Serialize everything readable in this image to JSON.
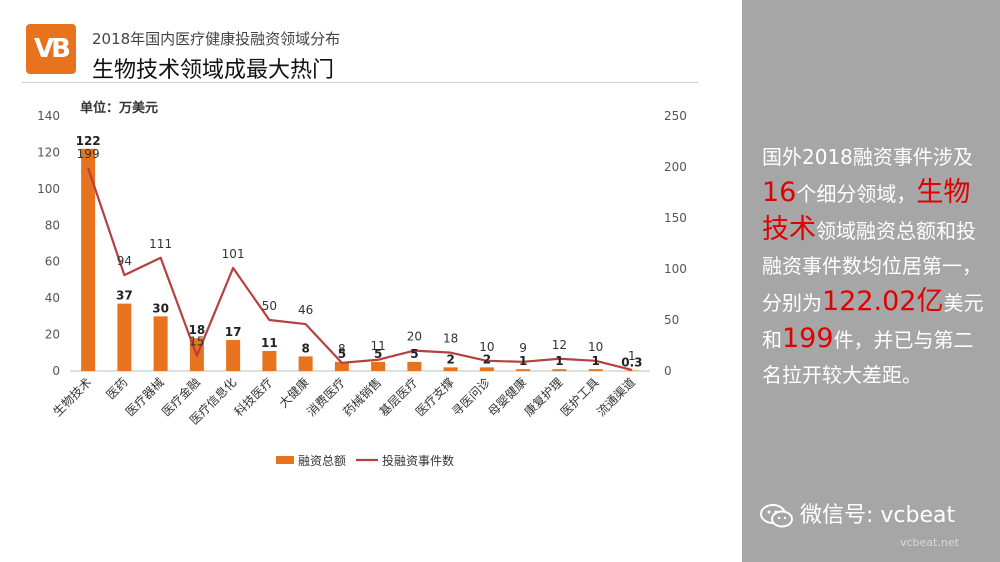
{
  "header": {
    "logo_text": "VB",
    "subtitle": "2018年国内医疗健康投融资领域分布",
    "title": "生物技术领域成最大热门"
  },
  "chart_data": {
    "type": "bar",
    "unit_label": "单位：万美元",
    "categories": [
      "生物技术",
      "医药",
      "医疗器械",
      "医疗金融",
      "医疗信息化",
      "科技医疗",
      "大健康",
      "消费医疗",
      "药械销售",
      "基层医疗",
      "医疗支撑",
      "寻医问诊",
      "母婴健康",
      "康复护理",
      "医护工具",
      "流通渠道"
    ],
    "series": [
      {
        "name": "融资总额",
        "kind": "bar",
        "axis": "left",
        "color": "#e8731f",
        "values": [
          122,
          37,
          30,
          18,
          17,
          11,
          8,
          5,
          5,
          5,
          2,
          2,
          1,
          1,
          1,
          0.3
        ],
        "labels": [
          "122",
          "37",
          "30",
          "18",
          "17",
          "11",
          "8",
          "5",
          "5",
          "5",
          "2",
          "2",
          "1",
          "1",
          "1",
          "0.3"
        ]
      },
      {
        "name": "投融资事件数",
        "kind": "line",
        "axis": "right",
        "color": "#b5403f",
        "values": [
          199,
          94,
          111,
          15,
          101,
          50,
          46,
          8,
          11,
          20,
          18,
          10,
          9,
          12,
          10,
          1
        ],
        "labels": [
          "199",
          "94",
          "111",
          "15",
          "101",
          "50",
          "46",
          "8",
          "11",
          "20",
          "18",
          "10",
          "9",
          "12",
          "10",
          "1"
        ]
      }
    ],
    "left_axis": {
      "range": [
        0,
        140
      ],
      "ticks": [
        "0",
        "20",
        "40",
        "60",
        "80",
        "100",
        "120",
        "140"
      ]
    },
    "right_axis": {
      "range": [
        0,
        250
      ],
      "ticks": [
        "0",
        "50",
        "100",
        "150",
        "200",
        "250"
      ]
    },
    "legend_position": "bottom",
    "grid": false
  },
  "panel": {
    "background": "#a6a6a6",
    "highlight_color": "#e00000",
    "segments": [
      {
        "text": "国外2018融资事件涉及",
        "hl": false
      },
      {
        "text": "16",
        "hl": true
      },
      {
        "text": "个细分领域，",
        "hl": false
      },
      {
        "text": "生物技术",
        "hl": true
      },
      {
        "text": "领域融资总额和投融资事件数均位居第一，分别为",
        "hl": false
      },
      {
        "text": "122.02亿",
        "hl": true
      },
      {
        "text": "美元和",
        "hl": false
      },
      {
        "text": "199",
        "hl": true
      },
      {
        "text": "件，并已与第二名拉开较大差距。",
        "hl": false
      }
    ],
    "wechat_label": "微信号: vcbeat",
    "wechat_icon": "wechat-icon",
    "watermark": "vcbeat.net"
  }
}
